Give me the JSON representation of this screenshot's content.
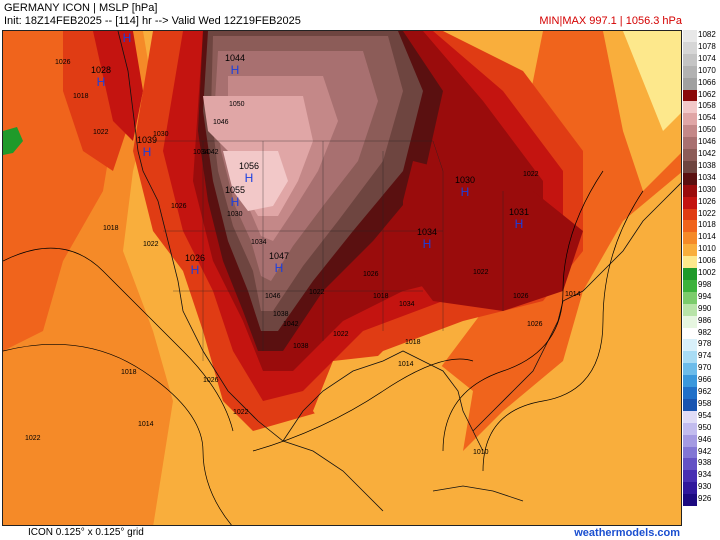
{
  "header": {
    "title": "GERMANY ICON | MSLP [hPa]",
    "init": "Init: 18Z14FEB2025 -- [114] hr --> Valid Wed 12Z19FEB2025",
    "minmax": "MIN|MAX 997.1 | 1056.3 hPa"
  },
  "footer": {
    "grid": "ICON 0.125° x 0.125° grid",
    "site": "weathermodels.com"
  },
  "colorbar": [
    {
      "label": "1082",
      "color": "#e8e8e8"
    },
    {
      "label": "1078",
      "color": "#d6d6d6"
    },
    {
      "label": "1074",
      "color": "#c4c4c4"
    },
    {
      "label": "1070",
      "color": "#b2b2b2"
    },
    {
      "label": "1066",
      "color": "#a0a0a0"
    },
    {
      "label": "1062",
      "color": "#8a0a0a"
    },
    {
      "label": "1058",
      "color": "#f2c8c8"
    },
    {
      "label": "1054",
      "color": "#e0a6a6"
    },
    {
      "label": "1050",
      "color": "#c48888"
    },
    {
      "label": "1046",
      "color": "#a87070"
    },
    {
      "label": "1042",
      "color": "#8c5c58"
    },
    {
      "label": "1038",
      "color": "#6e4540"
    },
    {
      "label": "1034",
      "color": "#5a1010"
    },
    {
      "label": "1030",
      "color": "#9a0c0c"
    },
    {
      "label": "1026",
      "color": "#c41410"
    },
    {
      "label": "1022",
      "color": "#e03c14"
    },
    {
      "label": "1018",
      "color": "#f0641c"
    },
    {
      "label": "1014",
      "color": "#f58a28"
    },
    {
      "label": "1010",
      "color": "#f9ae3c"
    },
    {
      "label": "1006",
      "color": "#fde88c"
    },
    {
      "label": "1002",
      "color": "#1f9a2a"
    },
    {
      "label": "998",
      "color": "#3cb23c"
    },
    {
      "label": "994",
      "color": "#7ccc6c"
    },
    {
      "label": "990",
      "color": "#b8e4a8"
    },
    {
      "label": "986",
      "color": "#e6f6e0"
    },
    {
      "label": "982",
      "color": "#ffffff"
    },
    {
      "label": "978",
      "color": "#d8f0fa"
    },
    {
      "label": "974",
      "color": "#a8dcf4"
    },
    {
      "label": "970",
      "color": "#6cbcea"
    },
    {
      "label": "966",
      "color": "#3a98dc"
    },
    {
      "label": "962",
      "color": "#2070c8"
    },
    {
      "label": "958",
      "color": "#1854b0"
    },
    {
      "label": "954",
      "color": "#e0dcf6"
    },
    {
      "label": "950",
      "color": "#c2bcee"
    },
    {
      "label": "946",
      "color": "#a49ae2"
    },
    {
      "label": "942",
      "color": "#8276d4"
    },
    {
      "label": "938",
      "color": "#6452c4"
    },
    {
      "label": "934",
      "color": "#4830b2"
    },
    {
      "label": "930",
      "color": "#30189c"
    },
    {
      "label": "926",
      "color": "#1c0a80"
    }
  ],
  "highs": [
    {
      "value": "1023",
      "label": "H"
    },
    {
      "value": "1028",
      "label": "H"
    },
    {
      "value": "1044",
      "label": "H"
    },
    {
      "value": "1039",
      "label": "H"
    },
    {
      "value": "1056",
      "label": "H"
    },
    {
      "value": "1055",
      "label": "H"
    },
    {
      "value": "1026",
      "label": "H"
    },
    {
      "value": "1047",
      "label": "H"
    },
    {
      "value": "1030",
      "label": "H"
    },
    {
      "value": "1034",
      "label": "H"
    },
    {
      "value": "1031",
      "label": "H"
    }
  ],
  "contour_labels": [
    "1026",
    "1018",
    "1022",
    "1030",
    "1034",
    "1042",
    "1046",
    "1050",
    "1038",
    "1014",
    "1010",
    "1018",
    "1022",
    "1026",
    "1030",
    "1034",
    "1022",
    "1026",
    "1022",
    "1018",
    "1018",
    "1022",
    "1014",
    "1010",
    "1026",
    "1014",
    "1022",
    "1034",
    "1042",
    "1038",
    "1046",
    "1026",
    "1022",
    "1018",
    "1014",
    "1022",
    "1026"
  ]
}
